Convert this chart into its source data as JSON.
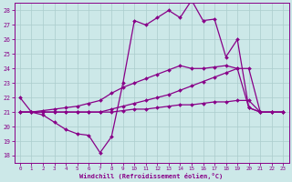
{
  "background_color": "#cce8e8",
  "grid_color": "#aacccc",
  "line_color": "#880088",
  "marker": "D",
  "markersize": 2.0,
  "linewidth": 0.9,
  "xlim": [
    -0.5,
    23.5
  ],
  "ylim": [
    17.5,
    28.5
  ],
  "xticks": [
    0,
    1,
    2,
    3,
    4,
    5,
    6,
    7,
    8,
    9,
    10,
    11,
    12,
    13,
    14,
    15,
    16,
    17,
    18,
    19,
    20,
    21,
    22,
    23
  ],
  "yticks": [
    18,
    19,
    20,
    21,
    22,
    23,
    24,
    25,
    26,
    27,
    28
  ],
  "xlabel": "Windchill (Refroidissement éolien,°C)",
  "series_x": [
    [
      0,
      1,
      2,
      3,
      4,
      5,
      6,
      7,
      8,
      9,
      10,
      11,
      12,
      13,
      14,
      15,
      16,
      17,
      18,
      19,
      20,
      21
    ],
    [
      0,
      1,
      2,
      3,
      4,
      5,
      6,
      7,
      8,
      9,
      10,
      11,
      12,
      13,
      14,
      15,
      16,
      17,
      18,
      19,
      20,
      21,
      22,
      23
    ],
    [
      0,
      1,
      2,
      3,
      4,
      5,
      6,
      7,
      8,
      9,
      10,
      11,
      12,
      13,
      14,
      15,
      16,
      17,
      18,
      19,
      20,
      21,
      22,
      23
    ],
    [
      0,
      1,
      2,
      3,
      4,
      5,
      6,
      7,
      8,
      9,
      10,
      11,
      12,
      13,
      14,
      15,
      16,
      17,
      18,
      19,
      20,
      21,
      22,
      23
    ]
  ],
  "series_y": [
    [
      22.0,
      21.0,
      20.8,
      20.3,
      19.8,
      19.5,
      19.4,
      18.2,
      19.3,
      23.0,
      27.3,
      27.0,
      27.5,
      28.0,
      27.5,
      28.7,
      27.3,
      27.4,
      24.8,
      26.0,
      21.3,
      21.0
    ],
    [
      21.0,
      21.0,
      21.0,
      21.0,
      21.0,
      21.0,
      21.0,
      21.0,
      21.0,
      21.1,
      21.2,
      21.2,
      21.3,
      21.4,
      21.5,
      21.5,
      21.6,
      21.7,
      21.7,
      21.8,
      21.8,
      21.0,
      21.0,
      21.0
    ],
    [
      21.0,
      21.0,
      21.1,
      21.2,
      21.3,
      21.4,
      21.6,
      21.8,
      22.3,
      22.7,
      23.0,
      23.3,
      23.6,
      23.9,
      24.2,
      24.0,
      24.0,
      24.1,
      24.2,
      24.0,
      21.3,
      21.0,
      21.0,
      21.0
    ],
    [
      21.0,
      21.0,
      21.0,
      21.0,
      21.0,
      21.0,
      21.0,
      21.0,
      21.2,
      21.4,
      21.6,
      21.8,
      22.0,
      22.2,
      22.5,
      22.8,
      23.1,
      23.4,
      23.7,
      24.0,
      24.0,
      21.0,
      21.0,
      21.0
    ]
  ]
}
